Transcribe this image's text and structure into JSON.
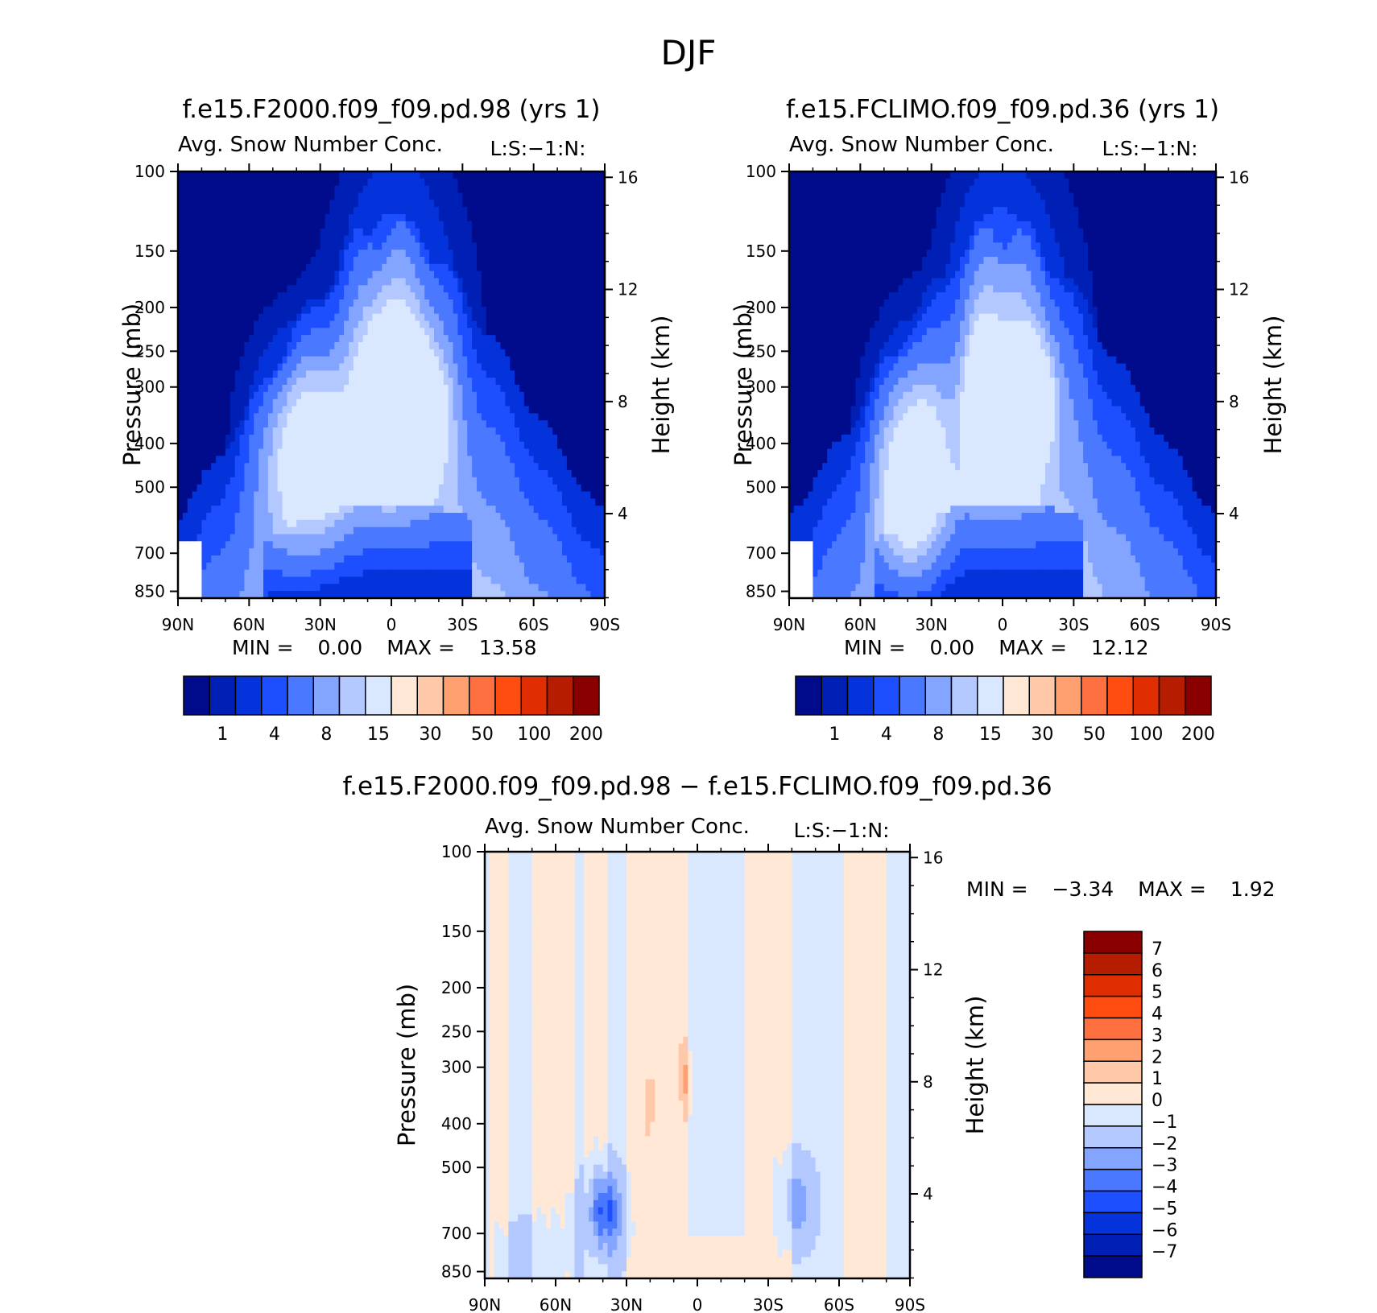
{
  "figure_title": "DJF",
  "chart_data": [
    {
      "type": "heatmap",
      "id": "panel1",
      "title": "f.e15.F2000.f09_f09.pd.98 (yrs 1)",
      "subtitle": "Avg. Snow Number Conc.",
      "code_label": "L:S:-1:N:",
      "ylabel": "Pressure (mb)",
      "ylabel_right": "Height (km)",
      "x_ticks": [
        "90N",
        "60N",
        "30N",
        "0",
        "30S",
        "60S",
        "90S"
      ],
      "y_ticks": [
        "100",
        "150",
        "200",
        "250",
        "300",
        "400",
        "500",
        "700",
        "850"
      ],
      "y_right_ticks": [
        "16",
        "12",
        "8",
        "4"
      ],
      "y_scale": "log",
      "stats": {
        "min_label": "MIN =",
        "min": "0.00",
        "max_label": "MAX =",
        "max": "13.58"
      },
      "colorbar_labels": [
        "1",
        "4",
        "8",
        "15",
        "30",
        "50",
        "100",
        "200"
      ],
      "colorbar_colors": [
        "#000c8c",
        "#0020b5",
        "#0432db",
        "#1e4fff",
        "#4a78ff",
        "#84a5ff",
        "#b3c8ff",
        "#d9e8ff",
        "#ffe8d6",
        "#ffc8a8",
        "#ffa070",
        "#ff7040",
        "#ff4d12",
        "#e02e00",
        "#b51c00",
        "#8a0000"
      ],
      "clouds": [
        {
          "x": 35,
          "p": 420,
          "rx": 18,
          "rp": 0.45,
          "v": 7.5
        },
        {
          "x": 2,
          "p": 330,
          "rx": 10,
          "rp": 0.35,
          "v": 9.5
        },
        {
          "x": -12,
          "p": 340,
          "rx": 10,
          "rp": 0.3,
          "v": 9
        },
        {
          "x": -3,
          "p": 280,
          "rx": 22,
          "rp": 0.75,
          "v": 3.5
        },
        {
          "x": 0,
          "p": 210,
          "rx": 15,
          "rp": 0.6,
          "v": 1.5
        }
      ]
    },
    {
      "type": "heatmap",
      "id": "panel2",
      "title": "f.e15.FCLIMO.f09_f09.pd.36 (yrs 1)",
      "subtitle": "Avg. Snow Number Conc.",
      "code_label": "L:S:-1:N:",
      "ylabel": "Pressure (mb)",
      "ylabel_right": "Height (km)",
      "x_ticks": [
        "90N",
        "60N",
        "30N",
        "0",
        "30S",
        "60S",
        "90S"
      ],
      "y_ticks": [
        "100",
        "150",
        "200",
        "250",
        "300",
        "400",
        "500",
        "700",
        "850"
      ],
      "y_right_ticks": [
        "16",
        "12",
        "8",
        "4"
      ],
      "y_scale": "log",
      "stats": {
        "min_label": "MIN =",
        "min": "0.00",
        "max_label": "MAX =",
        "max": "12.12"
      },
      "colorbar_labels": [
        "1",
        "4",
        "8",
        "15",
        "30",
        "50",
        "100",
        "200"
      ],
      "colorbar_colors": [
        "#000c8c",
        "#0020b5",
        "#0432db",
        "#1e4fff",
        "#4a78ff",
        "#84a5ff",
        "#b3c8ff",
        "#d9e8ff",
        "#ffe8d6",
        "#ffc8a8",
        "#ffa070",
        "#ff7040",
        "#ff4d12",
        "#e02e00",
        "#b51c00",
        "#8a0000"
      ],
      "clouds": [
        {
          "x": 38,
          "p": 470,
          "rx": 14,
          "rp": 0.5,
          "v": 8
        },
        {
          "x": 8,
          "p": 330,
          "rx": 7,
          "rp": 0.32,
          "v": 9
        },
        {
          "x": -12,
          "p": 320,
          "rx": 9,
          "rp": 0.28,
          "v": 8
        },
        {
          "x": -3,
          "p": 280,
          "rx": 22,
          "rp": 0.75,
          "v": 3.5
        },
        {
          "x": 3,
          "p": 200,
          "rx": 14,
          "rp": 0.6,
          "v": 1.5
        }
      ]
    },
    {
      "type": "heatmap",
      "id": "panel3",
      "title": "f.e15.F2000.f09_f09.pd.98 - f.e15.FCLIMO.f09_f09.pd.36",
      "subtitle": "Avg. Snow Number Conc.",
      "code_label": "L:S:-1:N:",
      "ylabel": "Pressure (mb)",
      "ylabel_right": "Height (km)",
      "x_ticks": [
        "90N",
        "60N",
        "30N",
        "0",
        "30S",
        "60S",
        "90S"
      ],
      "y_ticks": [
        "100",
        "150",
        "200",
        "250",
        "300",
        "400",
        "500",
        "700",
        "850"
      ],
      "y_right_ticks": [
        "16",
        "12",
        "8",
        "4"
      ],
      "y_scale": "log",
      "stats": {
        "min_label": "MIN =",
        "min": "-3.34",
        "max_label": "MAX =",
        "max": "1.92"
      },
      "colorbar_labels": [
        "7",
        "6",
        "5",
        "4",
        "3",
        "2",
        "1",
        "0",
        "-1",
        "-2",
        "-3",
        "-4",
        "-5",
        "-6",
        "-7"
      ],
      "colorbar_colors": [
        "#8a0000",
        "#b51c00",
        "#e02e00",
        "#ff4d12",
        "#ff7040",
        "#ffa070",
        "#ffc8a8",
        "#ffe8d6",
        "#d9e8ff",
        "#b3c8ff",
        "#84a5ff",
        "#4a78ff",
        "#1e4fff",
        "#0432db",
        "#0020b5",
        "#000c8c"
      ],
      "positive_bands": [
        [
          -80,
          -63
        ],
        [
          -40,
          -20
        ],
        [
          5,
          30
        ],
        [
          38,
          48
        ],
        [
          53,
          70
        ],
        [
          80,
          88
        ]
      ],
      "patches": [
        {
          "x": 40,
          "p": 620,
          "rx": 6,
          "rp": 0.18,
          "v": -3
        },
        {
          "x": 40,
          "p": 650,
          "rx": 12,
          "rp": 0.35,
          "v": -1.5
        },
        {
          "x": -42,
          "p": 600,
          "rx": 9,
          "rp": 0.25,
          "v": -2
        },
        {
          "x": 70,
          "p": 780,
          "rx": 18,
          "rp": 0.2,
          "v": -1.3
        },
        {
          "x": 5,
          "p": 320,
          "rx": 3,
          "rp": 0.2,
          "v": 1.5
        },
        {
          "x": 20,
          "p": 360,
          "rx": 2,
          "rp": 0.15,
          "v": 1.5
        }
      ]
    }
  ]
}
